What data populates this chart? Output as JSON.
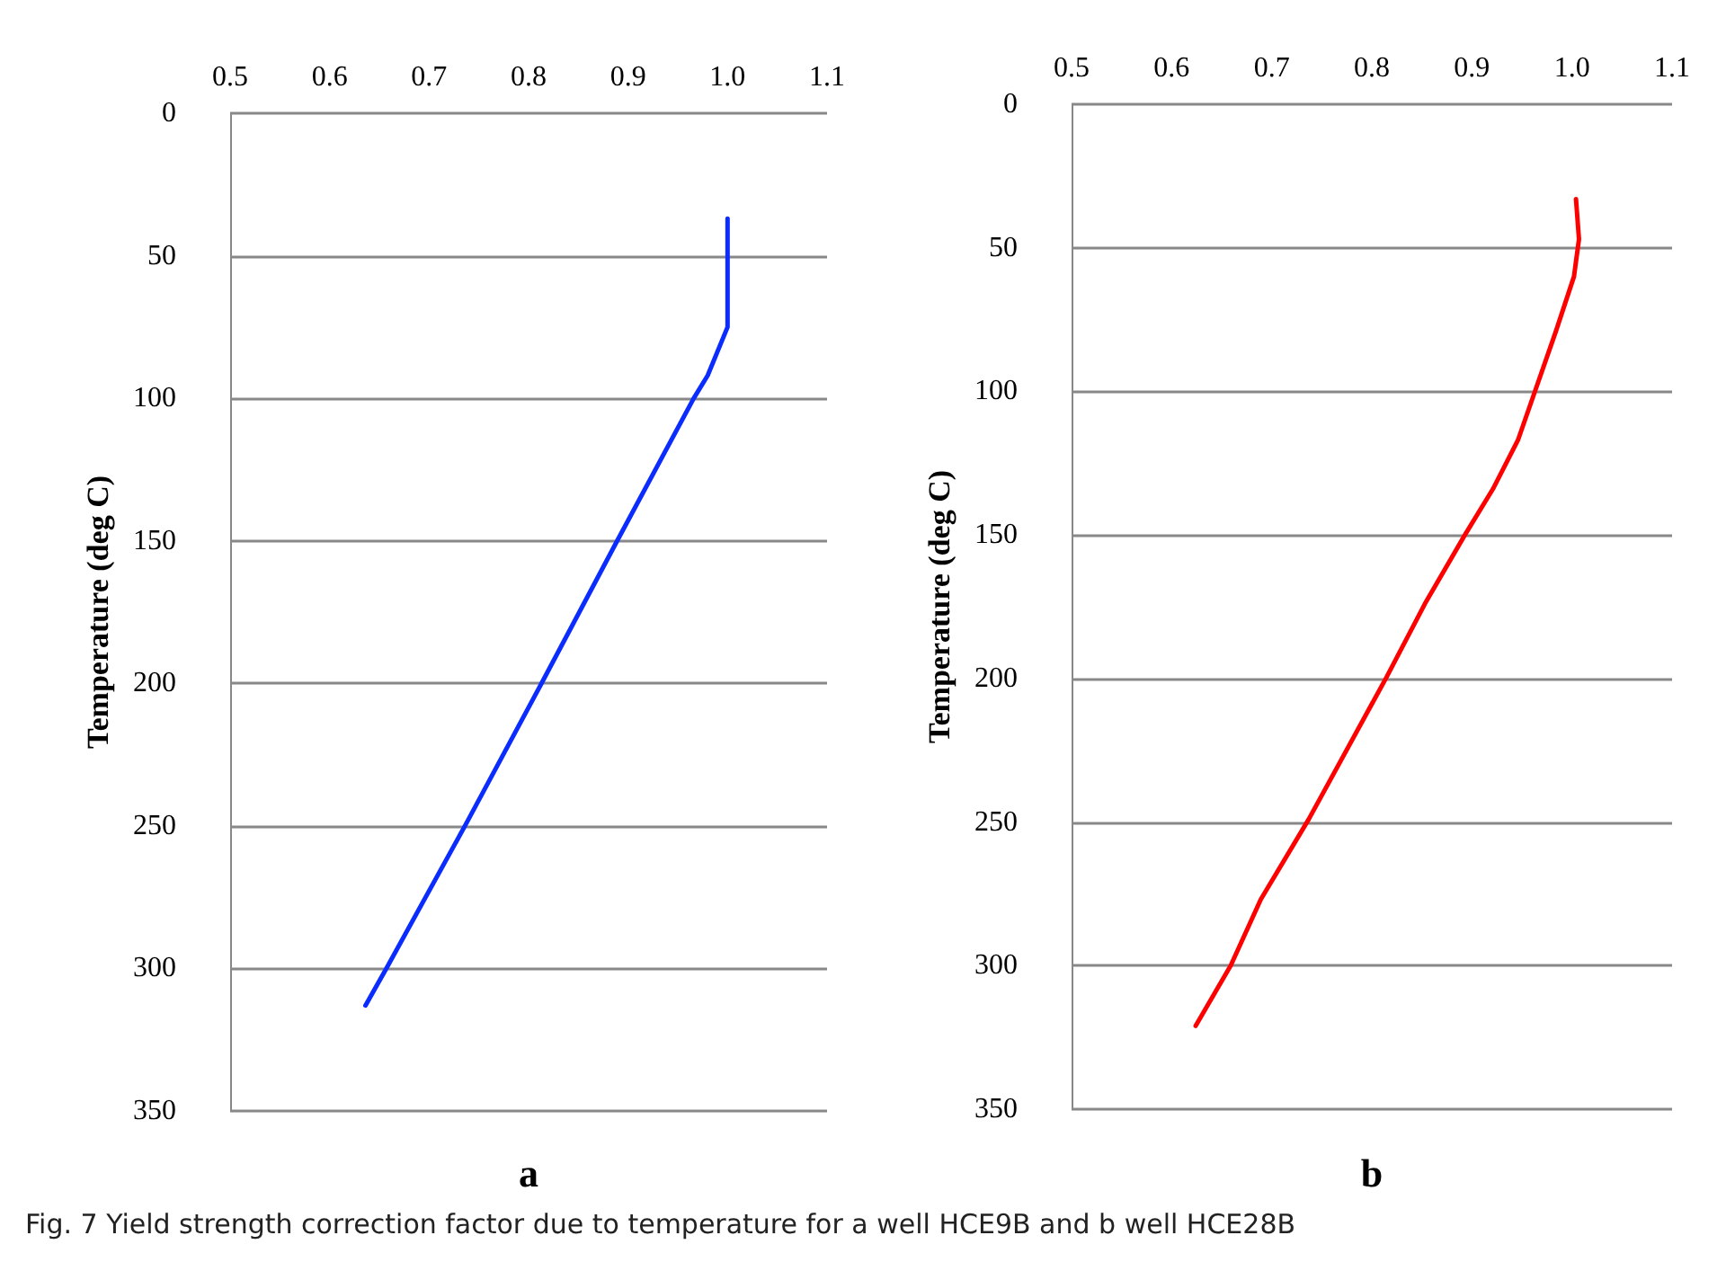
{
  "chart_data": [
    {
      "type": "line",
      "ylabel": "Temperature (deg C)",
      "annotations": [
        "a",
        "Fig. 7  Yield strength correction factor due to temperature for a well HCE9B and b well HCE28B"
      ],
      "series": [
        {
          "color": "#0a2cff",
          "x": [
            1.0,
            1.0,
            1.0,
            0.98,
            0.966,
            0.889,
            0.813,
            0.736,
            0.657,
            0.636
          ],
          "values": [
            37,
            70,
            75,
            92,
            100,
            150,
            200,
            250,
            300,
            313
          ]
        }
      ],
      "xlim": [
        0.5,
        1.1
      ],
      "xticks": [
        0.5,
        0.6,
        0.7,
        0.8,
        0.9,
        {
          "value": 1.0,
          "label": "1.0"
        },
        1.1
      ],
      "ylim": [
        350,
        0
      ],
      "yticks": [
        0,
        50,
        100,
        150,
        200,
        250,
        300,
        350
      ],
      "grid": "y",
      "marker": "none",
      "line_style": "solid"
    },
    {
      "type": "line",
      "ylabel": "Temperature (deg C)",
      "annotations": [
        "b"
      ],
      "series": [
        {
          "color": "#ff0000",
          "x": [
            1.004,
            1.007,
            1.002,
            0.984,
            0.964,
            0.946,
            0.921,
            0.893,
            0.853,
            0.814,
            0.737,
            0.689,
            0.659,
            0.624
          ],
          "values": [
            33,
            47,
            60,
            79,
            99,
            117,
            134,
            150,
            174,
            200,
            249,
            277,
            300,
            321
          ]
        }
      ],
      "xlim": [
        0.5,
        1.1
      ],
      "xticks": [
        0.5,
        0.6,
        0.7,
        0.8,
        0.9,
        {
          "value": 1.0,
          "label": "1.0"
        },
        1.1
      ],
      "ylim": [
        350,
        0
      ],
      "yticks": [
        0,
        50,
        100,
        150,
        200,
        250,
        300,
        350
      ],
      "grid": "y",
      "marker": "none",
      "line_style": "solid"
    }
  ]
}
